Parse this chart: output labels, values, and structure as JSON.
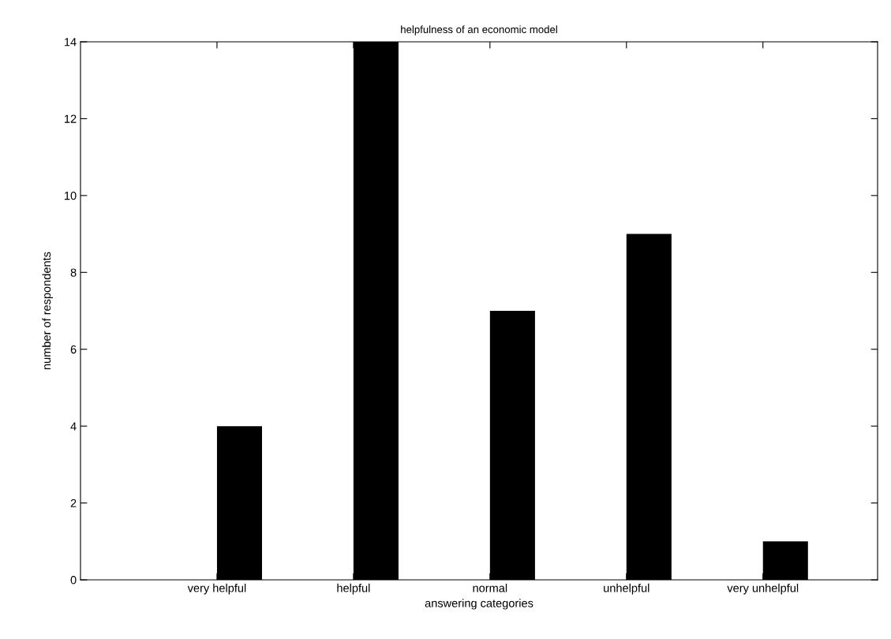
{
  "chart_data": {
    "type": "bar",
    "title": "helpfulness of an economic model",
    "xlabel": "answering categories",
    "ylabel": "number of respondents",
    "categories": [
      "very helpful",
      "helpful",
      "normal",
      "unhelpful",
      "very unhelpful"
    ],
    "values": [
      4,
      14,
      7,
      9,
      1
    ],
    "color": "#000000",
    "ylim": [
      0,
      14
    ],
    "yticks": [
      0,
      2,
      4,
      6,
      8,
      10,
      12,
      14
    ],
    "grid": false,
    "legend": false
  }
}
